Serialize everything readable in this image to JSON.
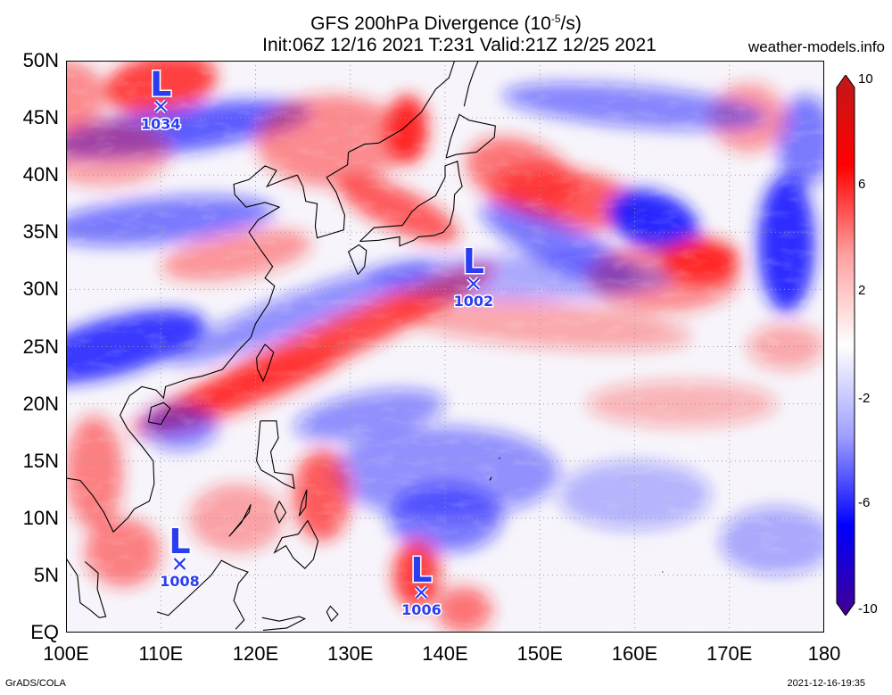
{
  "title": "GFS 200hPa Divergence (10",
  "title_exp": "-5",
  "title_tail": "/s)",
  "subtitle": "Init:06Z 12/16 2021 T:231 Valid:21Z 12/25 2021",
  "site": "weather-models.info",
  "footer_left": "GrADS/COLA",
  "footer_right": "2021-12-16-19:35",
  "lat_labels": [
    "50N",
    "45N",
    "40N",
    "35N",
    "30N",
    "25N",
    "20N",
    "15N",
    "10N",
    "5N",
    "EQ"
  ],
  "lon_labels": [
    "100E",
    "110E",
    "120E",
    "130E",
    "140E",
    "150E",
    "160E",
    "170E",
    "180"
  ],
  "colorbar": {
    "labels": [
      "10",
      "6",
      "2",
      "-2",
      "-6",
      "-10"
    ],
    "colors": [
      "#c01818",
      "#ff0000",
      "#ffa0a0",
      "#ffffff",
      "#a0a0ff",
      "#0000ff",
      "#400090"
    ],
    "icon": "colorbar-triangle-ends"
  },
  "lows": [
    {
      "label": "L",
      "pressure": "1034",
      "lon": 110,
      "lat": 46
    },
    {
      "label": "L",
      "pressure": "1002",
      "lon": 143,
      "lat": 30.5
    },
    {
      "label": "L",
      "pressure": "1008",
      "lon": 112,
      "lat": 6
    },
    {
      "label": "L",
      "pressure": "1006",
      "lon": 137.5,
      "lat": 3.5
    }
  ],
  "colors": {
    "positive": "#ff2020",
    "negative": "#1a1aff",
    "low_marker": "#2b3df0",
    "coastline": "#000000",
    "grid": "#9a9a9a"
  }
}
